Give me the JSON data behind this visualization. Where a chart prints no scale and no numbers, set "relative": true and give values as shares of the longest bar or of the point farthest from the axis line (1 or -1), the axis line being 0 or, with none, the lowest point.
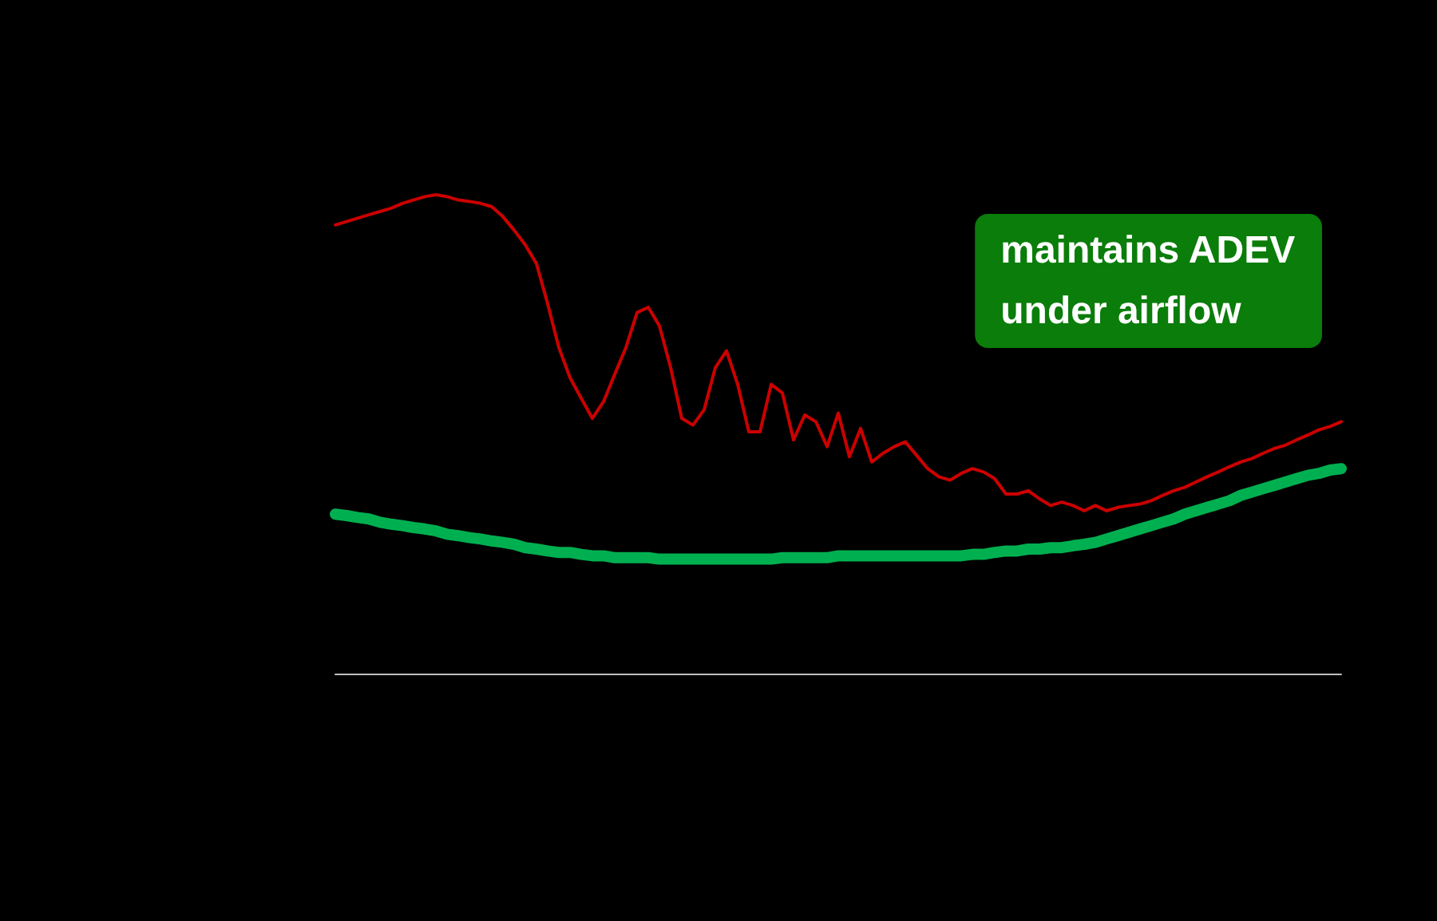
{
  "chart_data": {
    "type": "line",
    "relative": true,
    "categories": [
      null,
      null,
      null,
      null,
      null,
      null,
      null,
      null,
      null,
      null,
      null,
      null,
      null,
      null,
      null,
      null,
      null,
      null,
      null,
      null,
      null,
      null,
      null,
      null,
      null,
      null,
      null,
      null,
      null,
      null,
      null,
      null,
      null,
      null,
      null,
      null,
      null,
      null,
      null,
      null,
      null,
      null,
      null,
      null,
      null,
      null,
      null,
      null,
      null,
      null,
      null,
      null,
      null,
      null,
      null,
      null,
      null,
      null,
      null,
      null,
      null,
      null,
      null,
      null,
      null,
      null,
      null,
      null,
      null,
      null,
      null,
      null,
      null,
      null,
      null,
      null,
      null,
      null,
      null,
      null,
      null,
      null,
      null,
      null,
      null,
      null,
      null,
      null,
      null,
      null,
      null
    ],
    "series": [
      {
        "color": "#cc0000",
        "values": [
          0.937,
          0.944,
          0.951,
          0.958,
          0.965,
          0.972,
          0.982,
          0.989,
          0.996,
          1,
          0.996,
          0.989,
          0.986,
          0.982,
          0.975,
          0.954,
          0.926,
          0.895,
          0.856,
          0.772,
          0.681,
          0.618,
          0.575,
          0.533,
          0.568,
          0.625,
          0.681,
          0.754,
          0.765,
          0.726,
          0.639,
          0.533,
          0.519,
          0.551,
          0.639,
          0.674,
          0.604,
          0.505,
          0.505,
          0.604,
          0.586,
          0.488,
          0.54,
          0.526,
          0.474,
          0.544,
          0.453,
          0.512,
          0.442,
          0.46,
          0.474,
          0.484,
          0.456,
          0.428,
          0.411,
          0.404,
          0.418,
          0.428,
          0.421,
          0.407,
          0.375,
          0.375,
          0.382,
          0.365,
          0.351,
          0.358,
          0.351,
          0.34,
          0.351,
          0.34,
          0.347,
          0.351,
          0.354,
          0.361,
          0.372,
          0.382,
          0.389,
          0.4,
          0.411,
          0.421,
          0.432,
          0.442,
          0.449,
          0.46,
          0.47,
          0.477,
          0.488,
          0.498,
          0.509,
          0.516,
          0.526
        ]
      },
      {
        "color": "#00b050",
        "values": [
          0.333,
          0.33,
          0.326,
          0.323,
          0.316,
          0.312,
          0.309,
          0.305,
          0.302,
          0.298,
          0.291,
          0.288,
          0.284,
          0.281,
          0.277,
          0.274,
          0.27,
          0.263,
          0.26,
          0.256,
          0.253,
          0.253,
          0.249,
          0.246,
          0.246,
          0.242,
          0.242,
          0.242,
          0.242,
          0.239,
          0.239,
          0.239,
          0.239,
          0.239,
          0.239,
          0.239,
          0.239,
          0.239,
          0.239,
          0.239,
          0.242,
          0.242,
          0.242,
          0.242,
          0.242,
          0.246,
          0.246,
          0.246,
          0.246,
          0.246,
          0.246,
          0.246,
          0.246,
          0.246,
          0.246,
          0.246,
          0.246,
          0.249,
          0.249,
          0.253,
          0.256,
          0.256,
          0.26,
          0.26,
          0.263,
          0.263,
          0.267,
          0.27,
          0.274,
          0.281,
          0.288,
          0.295,
          0.302,
          0.309,
          0.316,
          0.323,
          0.333,
          0.34,
          0.347,
          0.354,
          0.361,
          0.372,
          0.379,
          0.386,
          0.393,
          0.4,
          0.407,
          0.414,
          0.418,
          0.425,
          0.428
        ]
      }
    ],
    "annotations": [
      "maintains ADEV\nunder airflow"
    ]
  }
}
